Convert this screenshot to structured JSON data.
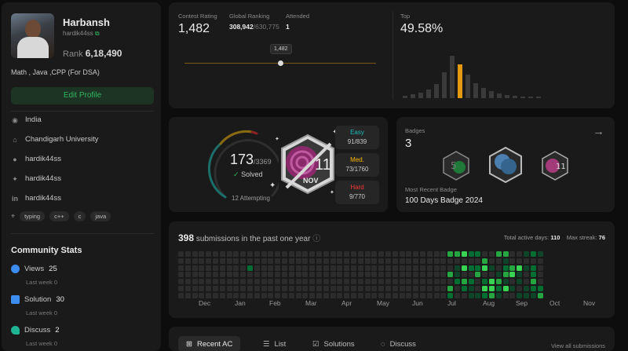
{
  "profile": {
    "name": "Harbansh",
    "handle": "hardik44ss",
    "rank_label": "Rank",
    "rank_value": "6,18,490",
    "about": "Math , Java ,CPP (For DSA)",
    "edit_button": "Edit Profile",
    "info": [
      {
        "icon": "location-icon",
        "text": "India"
      },
      {
        "icon": "university-icon",
        "text": "Chandigarh University"
      },
      {
        "icon": "github-icon",
        "text": "hardik44ss"
      },
      {
        "icon": "twitter-icon",
        "text": "hardik44ss"
      },
      {
        "icon": "linkedin-icon",
        "text": "hardik44ss"
      }
    ],
    "tags": [
      "typing",
      "c++",
      "c",
      "java"
    ]
  },
  "community": {
    "title": "Community Stats",
    "stats": [
      {
        "label": "Views",
        "value": "25",
        "sub_label": "Last week",
        "sub_value": "0",
        "color": "#3d8cf0",
        "icon": "eye-icon"
      },
      {
        "label": "Solution",
        "value": "30",
        "sub_label": "Last week",
        "sub_value": "0",
        "color": "#3d8cf0",
        "icon": "solution-icon"
      },
      {
        "label": "Discuss",
        "value": "2",
        "sub_label": "Last week",
        "sub_value": "0",
        "color": "#1fb594",
        "icon": "discuss-icon"
      }
    ]
  },
  "contest": {
    "rating_label": "Contest Rating",
    "rating_value": "1,482",
    "global_label": "Global Ranking",
    "global_value": "308,942",
    "global_total": "/630,775",
    "attended_label": "Attended",
    "attended_value": "1",
    "tooltip": "1,482",
    "top_label": "Top",
    "top_value": "49.58%",
    "histogram": [
      0.05,
      0.08,
      0.12,
      0.18,
      0.3,
      0.55,
      0.9,
      0.72,
      0.5,
      0.32,
      0.22,
      0.15,
      0.1,
      0.07,
      0.05,
      0.04,
      0.03,
      0.03
    ],
    "highlight_index": 7,
    "accent": "#e39a12"
  },
  "problems": {
    "solved": "173",
    "total": "/3369",
    "solved_label": "Solved",
    "attempting": "12 Attempting",
    "easy": {
      "label": "Easy",
      "value": "91/839",
      "color": "#1cbbba"
    },
    "medium": {
      "label": "Med.",
      "value": "73/1760",
      "color": "#ffb700"
    },
    "hard": {
      "label": "Hard",
      "value": "9/770",
      "color": "#f63737"
    },
    "badge_number": "11",
    "badge_month": "NOV"
  },
  "badges": {
    "title": "Badges",
    "count": "3",
    "recent_label": "Most Recent Badge",
    "recent_value": "100 Days Badge 2024"
  },
  "submissions": {
    "count": "398",
    "text": "submissions in the past one year",
    "active_label": "Total active days:",
    "active_value": "110",
    "streak_label": "Max streak:",
    "streak_value": "76",
    "months": [
      "Dec",
      "Jan",
      "Feb",
      "Mar",
      "Apr",
      "May",
      "Jun",
      "Jul",
      "Aug",
      "Sep",
      "Oct",
      "Nov"
    ]
  },
  "tabs": [
    {
      "label": "Recent AC",
      "icon": "recent-icon"
    },
    {
      "label": "List",
      "icon": "list-icon"
    },
    {
      "label": "Solutions",
      "icon": "solutions-icon"
    },
    {
      "label": "Discuss",
      "icon": "discuss-icon"
    }
  ],
  "view_all": "View all submissions"
}
